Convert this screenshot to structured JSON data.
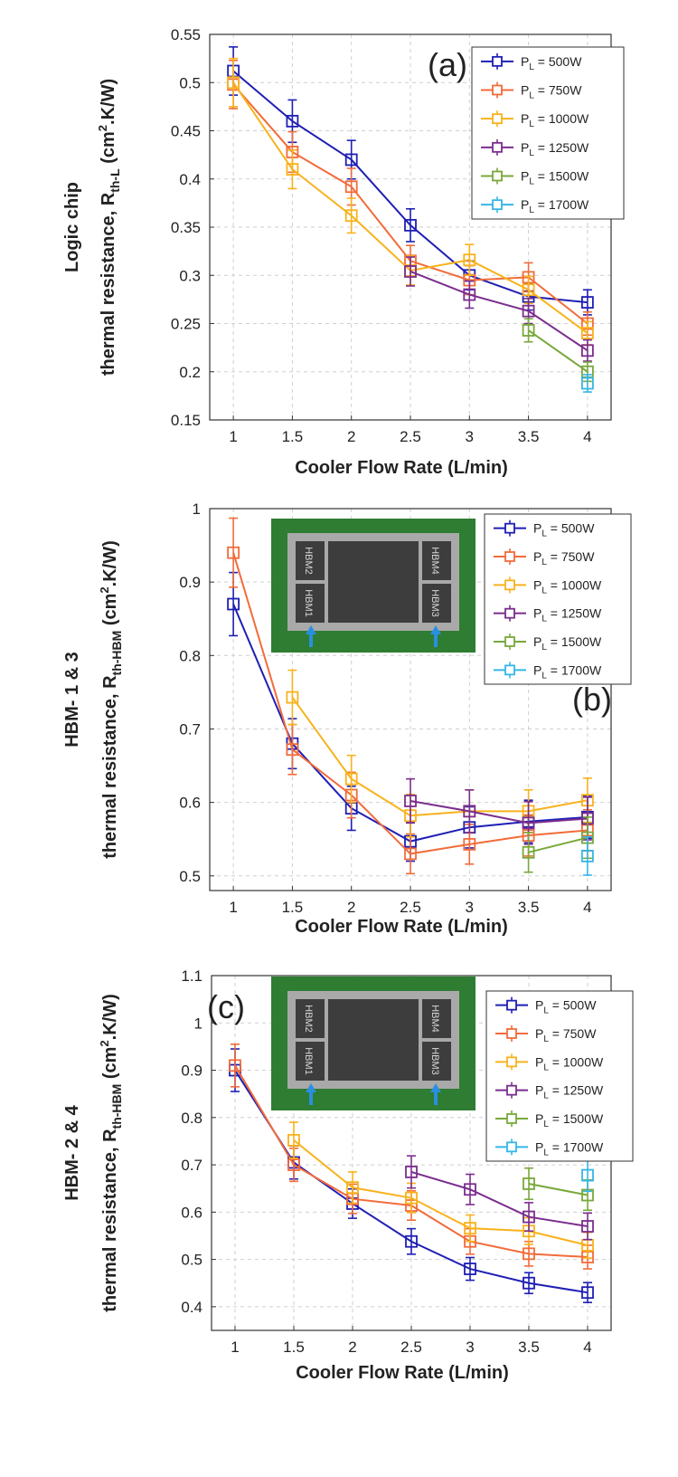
{
  "colors": {
    "P500": "#1f1fb4",
    "P750": "#f26b3a",
    "P1000": "#f8b21c",
    "P1250": "#7b2d8e",
    "P1500": "#78a83a",
    "P1700": "#35b6e8",
    "pcb": "#2e7d32",
    "frame": "#a9a9a9",
    "die": "#3d3d3d",
    "arrow": "#2a8fe0"
  },
  "shared": {
    "xlabel": "Cooler Flow Rate (L/min)",
    "x": [
      1,
      1.5,
      2,
      2.5,
      3,
      3.5,
      4
    ],
    "xticks": [
      "1",
      "1.5",
      "2",
      "2.5",
      "3",
      "3.5",
      "4"
    ],
    "legend_prefix": "P",
    "legend_sub": "L",
    "legend_entries": [
      " = 500W",
      " = 750W",
      " = 1000W",
      " = 1250W",
      " = 1500W",
      " = 1700W"
    ]
  },
  "inset": {
    "labels_b": [
      "HBM2",
      "HBM1",
      "HBM4",
      "HBM3"
    ],
    "labels_c": [
      "HBM2",
      "HBM1",
      "HBM4",
      "HBM3"
    ]
  },
  "chart_data": [
    {
      "type": "line",
      "panel_label": "(a)",
      "ylabel_line1": "Logic chip",
      "ylabel_line2_pre": "thermal resistance, R",
      "ylabel_sub": "th-L",
      "ylabel_unit_pre": " (cm",
      "ylabel_sup": "2",
      "ylabel_unit_post": ".K/W)",
      "ylim": [
        0.15,
        0.55
      ],
      "yticks": [
        "0.15",
        "0.2",
        "0.25",
        "0.3",
        "0.35",
        "0.4",
        "0.45",
        "0.5",
        "0.55"
      ],
      "ytick_values": [
        0.15,
        0.2,
        0.25,
        0.3,
        0.35,
        0.4,
        0.45,
        0.5,
        0.55
      ],
      "legend_position": "top-right",
      "grid": true,
      "series": [
        {
          "name": "PL = 500W",
          "color_key": "P500",
          "x": [
            1,
            1.5,
            2,
            2.5,
            3,
            3.5,
            4
          ],
          "values": [
            0.512,
            0.46,
            0.42,
            0.352,
            0.3,
            0.278,
            0.272
          ],
          "err": [
            0.025,
            0.022,
            0.02,
            0.017,
            0.015,
            0.014,
            0.013
          ]
        },
        {
          "name": "PL = 750W",
          "color_key": "P750",
          "x": [
            1,
            1.5,
            2,
            2.5,
            3,
            3.5,
            4
          ],
          "values": [
            0.498,
            0.428,
            0.392,
            0.315,
            0.295,
            0.298,
            0.25
          ],
          "err": [
            0.025,
            0.021,
            0.019,
            0.016,
            0.015,
            0.015,
            0.012
          ]
        },
        {
          "name": "PL = 1000W",
          "color_key": "P1000",
          "x": [
            1,
            1.5,
            2,
            2.5,
            3,
            3.5,
            4
          ],
          "values": [
            0.5,
            0.41,
            0.362,
            0.305,
            0.316,
            0.285,
            0.24
          ],
          "err": [
            0.025,
            0.02,
            0.018,
            0.015,
            0.016,
            0.014,
            0.012
          ]
        },
        {
          "name": "PL = 1250W",
          "color_key": "P1250",
          "x": [
            2.5,
            3,
            3.5,
            4
          ],
          "values": [
            0.304,
            0.28,
            0.263,
            0.222
          ],
          "err": [
            0.015,
            0.014,
            0.013,
            0.011
          ]
        },
        {
          "name": "PL = 1500W",
          "color_key": "P1500",
          "x": [
            3.5,
            4
          ],
          "values": [
            0.243,
            0.2
          ],
          "err": [
            0.012,
            0.01
          ]
        },
        {
          "name": "PL = 1700W",
          "color_key": "P1700",
          "x": [
            4
          ],
          "values": [
            0.188
          ],
          "err": [
            0.009
          ]
        }
      ]
    },
    {
      "type": "line",
      "panel_label": "(b)",
      "ylabel_line1": "HBM- 1 & 3",
      "ylabel_line2_pre": "thermal resistance, R",
      "ylabel_sub": "th-HBM",
      "ylabel_unit_pre": " (cm",
      "ylabel_sup": "2",
      "ylabel_unit_post": ".K/W)",
      "ylim": [
        0.48,
        1.0
      ],
      "yticks": [
        "0.5",
        "0.6",
        "0.7",
        "0.8",
        "0.9",
        "1"
      ],
      "ytick_values": [
        0.5,
        0.6,
        0.7,
        0.8,
        0.9,
        1.0
      ],
      "legend_position": "top-right",
      "grid": true,
      "series": [
        {
          "name": "PL = 500W",
          "color_key": "P500",
          "x": [
            1,
            1.5,
            2,
            2.5,
            3,
            3.5,
            4
          ],
          "values": [
            0.87,
            0.68,
            0.592,
            0.547,
            0.566,
            0.574,
            0.58
          ],
          "err": [
            0.043,
            0.034,
            0.03,
            0.027,
            0.028,
            0.029,
            0.029
          ]
        },
        {
          "name": "PL = 750W",
          "color_key": "P750",
          "x": [
            1,
            1.5,
            2,
            2.5,
            3,
            3.5,
            4
          ],
          "values": [
            0.94,
            0.672,
            0.61,
            0.53,
            0.543,
            0.555,
            0.562
          ],
          "err": [
            0.047,
            0.034,
            0.031,
            0.027,
            0.027,
            0.028,
            0.028
          ]
        },
        {
          "name": "PL = 1000W",
          "color_key": "P1000",
          "x": [
            1.5,
            2,
            2.5,
            3,
            3.5,
            4
          ],
          "values": [
            0.743,
            0.632,
            0.582,
            0.588,
            0.588,
            0.603
          ],
          "err": [
            0.037,
            0.032,
            0.029,
            0.029,
            0.029,
            0.03
          ]
        },
        {
          "name": "PL = 1250W",
          "color_key": "P1250",
          "x": [
            2.5,
            3,
            3.5,
            4
          ],
          "values": [
            0.602,
            0.588,
            0.572,
            0.578
          ],
          "err": [
            0.03,
            0.029,
            0.029,
            0.029
          ]
        },
        {
          "name": "PL = 1500W",
          "color_key": "P1500",
          "x": [
            3.5,
            4
          ],
          "values": [
            0.532,
            0.552
          ],
          "err": [
            0.027,
            0.028
          ]
        },
        {
          "name": "PL = 1700W",
          "color_key": "P1700",
          "x": [
            4
          ],
          "values": [
            0.527
          ],
          "err": [
            0.026
          ]
        }
      ]
    },
    {
      "type": "line",
      "panel_label": "(c)",
      "ylabel_line1": "HBM- 2 & 4",
      "ylabel_line2_pre": "thermal resistance, R",
      "ylabel_sub": "th-HBM",
      "ylabel_unit_pre": " (cm",
      "ylabel_sup": "2",
      "ylabel_unit_post": ".K/W)",
      "ylim": [
        0.35,
        1.1
      ],
      "yticks": [
        "0.4",
        "0.5",
        "0.6",
        "0.7",
        "0.8",
        "0.9",
        "1",
        "1.1"
      ],
      "ytick_values": [
        0.4,
        0.5,
        0.6,
        0.7,
        0.8,
        0.9,
        1.0,
        1.1
      ],
      "legend_position": "top-right",
      "grid": true,
      "series": [
        {
          "name": "PL = 500W",
          "color_key": "P500",
          "x": [
            1,
            1.5,
            2,
            2.5,
            3,
            3.5,
            4
          ],
          "values": [
            0.9,
            0.705,
            0.618,
            0.538,
            0.48,
            0.45,
            0.43
          ],
          "err": [
            0.045,
            0.035,
            0.031,
            0.027,
            0.024,
            0.022,
            0.021
          ]
        },
        {
          "name": "PL = 750W",
          "color_key": "P750",
          "x": [
            1,
            1.5,
            2,
            2.5,
            3,
            3.5,
            4
          ],
          "values": [
            0.91,
            0.7,
            0.628,
            0.614,
            0.538,
            0.512,
            0.505
          ],
          "err": [
            0.045,
            0.035,
            0.031,
            0.031,
            0.027,
            0.026,
            0.025
          ]
        },
        {
          "name": "PL = 1000W",
          "color_key": "P1000",
          "x": [
            1.5,
            2,
            2.5,
            3,
            3.5,
            4
          ],
          "values": [
            0.752,
            0.652,
            0.63,
            0.566,
            0.56,
            0.53
          ],
          "err": [
            0.038,
            0.033,
            0.031,
            0.028,
            0.028,
            0.027
          ]
        },
        {
          "name": "PL = 1250W",
          "color_key": "P1250",
          "x": [
            2.5,
            3,
            3.5,
            4
          ],
          "values": [
            0.685,
            0.648,
            0.59,
            0.57
          ],
          "err": [
            0.034,
            0.032,
            0.03,
            0.028
          ]
        },
        {
          "name": "PL = 1500W",
          "color_key": "P1500",
          "x": [
            3.5,
            4
          ],
          "values": [
            0.66,
            0.636
          ],
          "err": [
            0.033,
            0.032
          ]
        },
        {
          "name": "PL = 1700W",
          "color_key": "P1700",
          "x": [
            4
          ],
          "values": [
            0.678
          ],
          "err": [
            0.034
          ]
        }
      ]
    }
  ]
}
